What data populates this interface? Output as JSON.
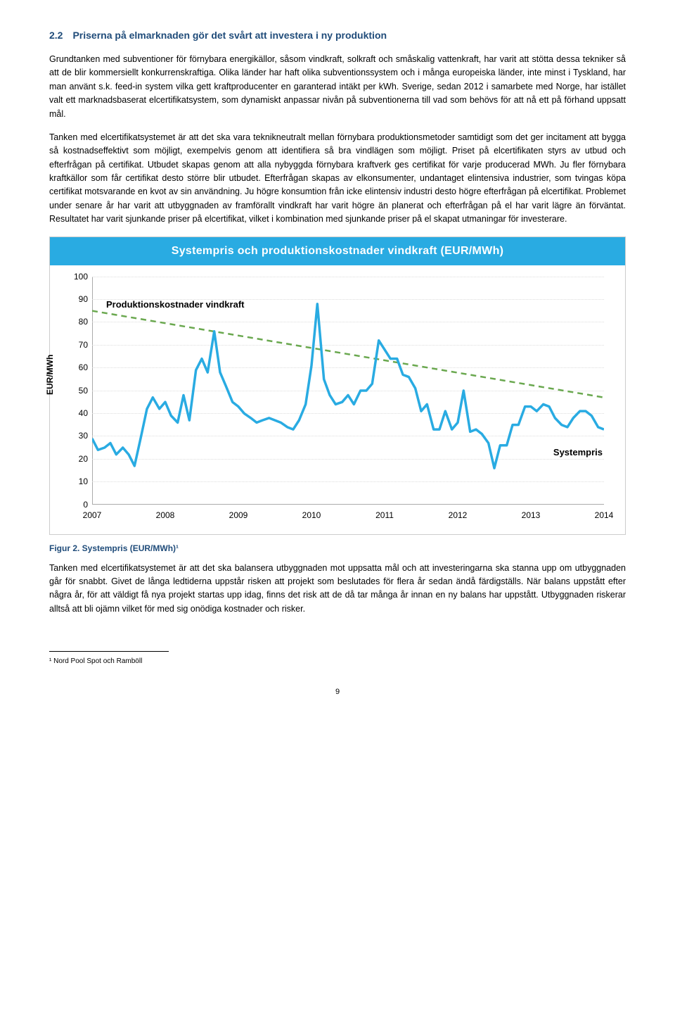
{
  "section": {
    "number": "2.2",
    "title": "Priserna på elmarknaden gör det svårt att investera i ny produktion"
  },
  "paragraphs": {
    "p1": "Grundtanken med subventioner för förnybara energikällor, såsom vindkraft, solkraft och småskalig vattenkraft, har varit att stötta dessa tekniker så att de blir kommersiellt konkurrenskraftiga. Olika länder har haft olika subventionssystem och i många europeiska länder, inte minst i Tyskland, har man använt s.k. feed-in system vilka gett kraftproducenter en garanterad intäkt per kWh. Sverige, sedan 2012 i samarbete med Norge, har istället valt ett marknadsbaserat elcertifikatsystem, som dynamiskt anpassar nivån på subventionerna till vad som behövs för att nå ett på förhand uppsatt mål.",
    "p2": "Tanken med elcertifikatsystemet är att det ska vara teknikneutralt mellan förnybara produktionsmetoder samtidigt som det ger incitament att bygga så kostnadseffektivt som möjligt, exempelvis genom att identifiera så bra vindlägen som möjligt. Priset på elcertifikaten styrs av utbud och efterfrågan på certifikat. Utbudet skapas genom att alla nybyggda förnybara kraftverk ges certifikat för varje producerad MWh. Ju fler förnybara kraftkällor som får certifikat desto större blir utbudet. Efterfrågan skapas av elkonsumenter, undantaget elintensiva industrier, som tvingas köpa certifikat motsvarande en kvot av sin användning. Ju högre konsumtion från icke elintensiv industri desto högre efterfrågan på elcertifikat. Problemet under senare år har varit att utbyggnaden av framförallt vindkraft har varit högre än planerat och efterfrågan på el har varit lägre än förväntat. Resultatet har varit sjunkande priser på elcertifikat, vilket i kombination med sjunkande priser på el skapat utmaningar för investerare.",
    "p3": "Tanken med elcertifikatsystemet är att det ska balansera utbyggnaden mot uppsatta mål och att investeringarna ska stanna upp om utbyggnaden går för snabbt. Givet de långa ledtiderna uppstår risken att projekt som beslutades för flera år sedan ändå färdigställs. När balans uppstått efter några år, för att väldigt få nya projekt startas upp idag, finns det risk att de då tar många år innan en ny balans har uppstått. Utbyggnaden riskerar alltså att bli ojämn vilket för med sig onödiga kostnader och risker."
  },
  "chart": {
    "title": "Systempris och produktionskostnader vindkraft (EUR/MWh)",
    "type": "line",
    "y_label": "EUR/MWh",
    "y_min": 0,
    "y_max": 100,
    "y_ticks": [
      0,
      10,
      20,
      30,
      40,
      50,
      60,
      70,
      80,
      90,
      100
    ],
    "x_ticks": [
      2007,
      2008,
      2009,
      2010,
      2011,
      2012,
      2013,
      2014
    ],
    "prod_label": "Produktionskostnader vindkraft",
    "sys_label": "Systempris",
    "dash_color": "#6aa84f",
    "line_color": "#29abe2",
    "line_width": 3.5,
    "dash_width": 2.5,
    "background": "#ffffff",
    "dash_line": {
      "x1": 2007,
      "y1": 85,
      "x2": 2014,
      "y2": 47
    },
    "systempris_points": [
      [
        2007.0,
        29
      ],
      [
        2007.08,
        24
      ],
      [
        2007.17,
        25
      ],
      [
        2007.25,
        27
      ],
      [
        2007.33,
        22
      ],
      [
        2007.42,
        25
      ],
      [
        2007.5,
        22
      ],
      [
        2007.58,
        17
      ],
      [
        2007.67,
        30
      ],
      [
        2007.75,
        42
      ],
      [
        2007.83,
        47
      ],
      [
        2007.92,
        42
      ],
      [
        2008.0,
        45
      ],
      [
        2008.08,
        39
      ],
      [
        2008.17,
        36
      ],
      [
        2008.25,
        48
      ],
      [
        2008.33,
        37
      ],
      [
        2008.42,
        59
      ],
      [
        2008.5,
        64
      ],
      [
        2008.58,
        58
      ],
      [
        2008.67,
        76
      ],
      [
        2008.75,
        58
      ],
      [
        2008.83,
        52
      ],
      [
        2008.92,
        45
      ],
      [
        2009.0,
        43
      ],
      [
        2009.08,
        40
      ],
      [
        2009.17,
        38
      ],
      [
        2009.25,
        36
      ],
      [
        2009.33,
        37
      ],
      [
        2009.42,
        38
      ],
      [
        2009.5,
        37
      ],
      [
        2009.58,
        36
      ],
      [
        2009.67,
        34
      ],
      [
        2009.75,
        33
      ],
      [
        2009.83,
        37
      ],
      [
        2009.92,
        44
      ],
      [
        2010.0,
        61
      ],
      [
        2010.08,
        88
      ],
      [
        2010.17,
        55
      ],
      [
        2010.25,
        48
      ],
      [
        2010.33,
        44
      ],
      [
        2010.42,
        45
      ],
      [
        2010.5,
        48
      ],
      [
        2010.58,
        44
      ],
      [
        2010.67,
        50
      ],
      [
        2010.75,
        50
      ],
      [
        2010.83,
        53
      ],
      [
        2010.92,
        72
      ],
      [
        2011.0,
        68
      ],
      [
        2011.08,
        64
      ],
      [
        2011.17,
        64
      ],
      [
        2011.25,
        57
      ],
      [
        2011.33,
        56
      ],
      [
        2011.42,
        51
      ],
      [
        2011.5,
        41
      ],
      [
        2011.58,
        44
      ],
      [
        2011.67,
        33
      ],
      [
        2011.75,
        33
      ],
      [
        2011.83,
        41
      ],
      [
        2011.92,
        33
      ],
      [
        2012.0,
        36
      ],
      [
        2012.08,
        50
      ],
      [
        2012.17,
        32
      ],
      [
        2012.25,
        33
      ],
      [
        2012.33,
        31
      ],
      [
        2012.42,
        27
      ],
      [
        2012.5,
        16
      ],
      [
        2012.58,
        26
      ],
      [
        2012.67,
        26
      ],
      [
        2012.75,
        35
      ],
      [
        2012.83,
        35
      ],
      [
        2012.92,
        43
      ],
      [
        2013.0,
        43
      ],
      [
        2013.08,
        41
      ],
      [
        2013.17,
        44
      ],
      [
        2013.25,
        43
      ],
      [
        2013.33,
        38
      ],
      [
        2013.42,
        35
      ],
      [
        2013.5,
        34
      ],
      [
        2013.58,
        38
      ],
      [
        2013.67,
        41
      ],
      [
        2013.75,
        41
      ],
      [
        2013.83,
        39
      ],
      [
        2013.92,
        34
      ],
      [
        2014.0,
        33
      ]
    ]
  },
  "figure_caption": "Figur 2. Systempris (EUR/MWh)¹",
  "footnote": "¹ Nord Pool Spot och Ramböll",
  "page_number": "9"
}
